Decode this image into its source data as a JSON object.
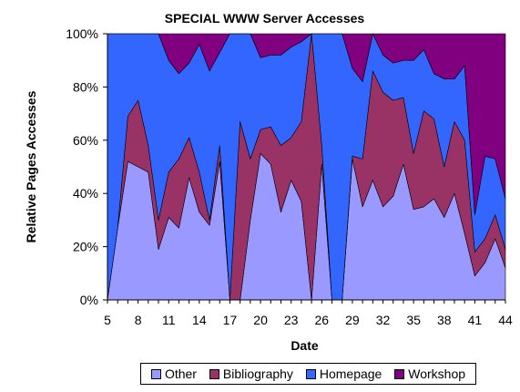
{
  "chart_data": {
    "type": "area",
    "stacking": "percent",
    "title": "SPECIAL WWW Server Accesses",
    "xlabel": "Date",
    "ylabel": "Relative Pages Accesses",
    "ylim": [
      0,
      100
    ],
    "yticks": [
      "0%",
      "20%",
      "40%",
      "60%",
      "80%",
      "100%"
    ],
    "xtick_labels": [
      "5",
      "8",
      "11",
      "14",
      "17",
      "20",
      "23",
      "26",
      "29",
      "32",
      "35",
      "38",
      "41",
      "44"
    ],
    "grid": false,
    "legend_position": "bottom",
    "x": [
      5,
      6,
      7,
      8,
      9,
      10,
      11,
      12,
      13,
      14,
      15,
      16,
      17,
      18,
      19,
      20,
      21,
      22,
      23,
      24,
      25,
      26,
      27,
      28,
      29,
      30,
      31,
      32,
      33,
      34,
      35,
      36,
      37,
      38,
      39,
      40,
      41,
      42,
      43,
      44
    ],
    "series": [
      {
        "name": "Other",
        "color": "#9999ff",
        "values": [
          0,
          27,
          52,
          50,
          48,
          19,
          31,
          27,
          46,
          33,
          28,
          52,
          0,
          0,
          30,
          55,
          51,
          33,
          45,
          37,
          0,
          51,
          0,
          0,
          53,
          35,
          45,
          35,
          39,
          51,
          34,
          35,
          38,
          31,
          40,
          25,
          9,
          14,
          23,
          12
        ]
      },
      {
        "name": "Bibliography",
        "color": "#993366",
        "values": [
          0,
          0,
          17,
          25,
          10,
          11,
          17,
          26,
          15,
          15,
          2,
          6,
          0,
          67,
          23,
          9,
          14,
          25,
          16,
          30,
          100,
          7,
          0,
          0,
          1,
          18,
          41,
          43,
          36,
          25,
          21,
          36,
          30,
          19,
          27,
          35,
          9,
          9,
          9,
          7
        ]
      },
      {
        "name": "Homepage",
        "color": "#3366ff",
        "values": [
          100,
          73,
          31,
          25,
          42,
          70,
          42,
          32,
          28,
          48,
          56,
          35,
          100,
          33,
          47,
          27,
          27,
          34,
          34,
          30,
          0,
          42,
          100,
          100,
          33,
          29,
          14,
          14,
          14,
          14,
          35,
          23,
          17,
          33,
          16,
          28,
          14,
          31,
          21,
          19
        ]
      },
      {
        "name": "Workshop",
        "color": "#800080",
        "values": [
          0,
          0,
          0,
          0,
          0,
          0,
          10,
          15,
          11,
          4,
          14,
          7,
          0,
          0,
          0,
          9,
          8,
          8,
          5,
          3,
          0,
          0,
          0,
          0,
          13,
          18,
          0,
          8,
          11,
          10,
          10,
          6,
          15,
          17,
          17,
          12,
          68,
          46,
          47,
          62
        ]
      }
    ]
  }
}
